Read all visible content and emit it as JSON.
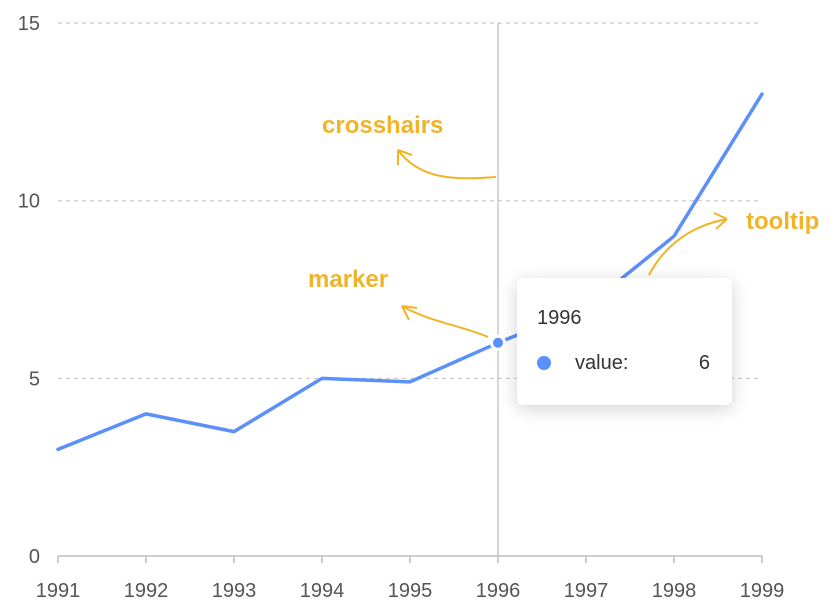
{
  "chart_data": {
    "type": "line",
    "categories": [
      "1991",
      "1992",
      "1993",
      "1994",
      "1995",
      "1996",
      "1997",
      "1998",
      "1999"
    ],
    "series": [
      {
        "values": [
          3,
          4,
          3.5,
          5,
          4.9,
          6,
          7,
          9,
          13
        ]
      }
    ],
    "ylim": [
      0,
      15
    ],
    "yticks": [
      0,
      5,
      10,
      15
    ],
    "grid": "horizontal dashed",
    "line_color": "#5B8FF9",
    "crosshair_category": "1996",
    "annotations": [
      {
        "text": "crosshairs",
        "color": "#F0B429"
      },
      {
        "text": "marker",
        "color": "#F0B429"
      },
      {
        "text": "tooltip",
        "color": "#F0B429"
      }
    ]
  },
  "tooltip": {
    "title": "1996",
    "name": "value:",
    "value": "6",
    "marker_color": "#5B8FF9"
  }
}
